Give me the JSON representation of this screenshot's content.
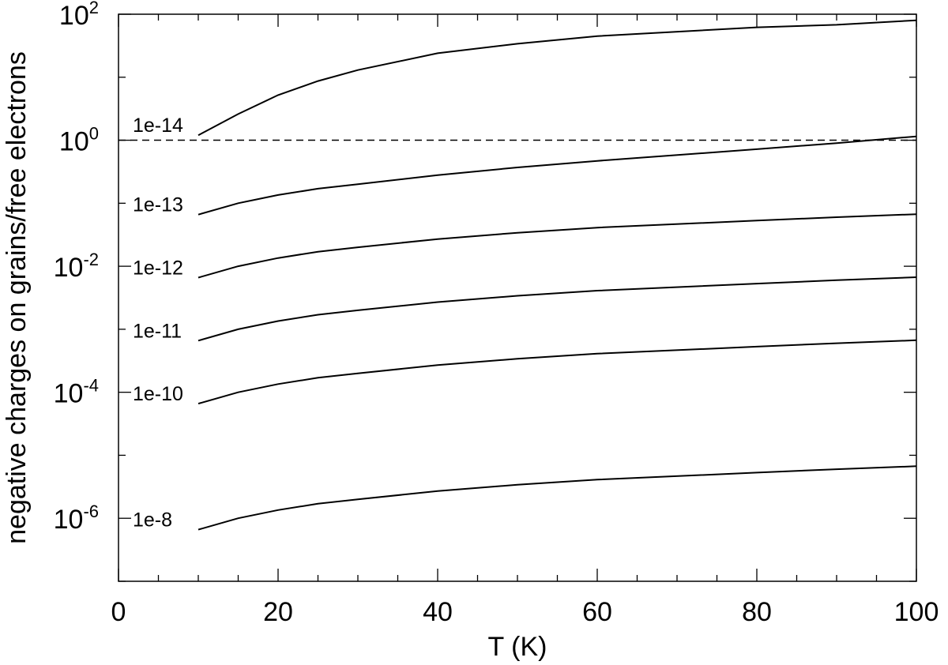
{
  "chart_data": {
    "type": "line",
    "xlabel": "T (K)",
    "ylabel": "negative charges on grains/free electrons",
    "xlim": [
      0,
      100
    ],
    "ylim": [
      1e-07,
      100
    ],
    "y_scale": "log",
    "x_ticks": [
      "0",
      "20",
      "40",
      "60",
      "80",
      "100"
    ],
    "y_ticks": [
      {
        "base": "10",
        "exp": "2",
        "value": 100
      },
      {
        "base": "10",
        "exp": "0",
        "value": 1
      },
      {
        "base": "10",
        "exp": "-2",
        "value": 0.01
      },
      {
        "base": "10",
        "exp": "-4",
        "value": 0.0001
      },
      {
        "base": "10",
        "exp": "-6",
        "value": 1e-06
      }
    ],
    "grid": false,
    "reference_line": {
      "y": 1,
      "style": "dashed"
    },
    "x": [
      10,
      15,
      20,
      25,
      30,
      40,
      50,
      60,
      80,
      90,
      100
    ],
    "series": [
      {
        "name": "1e-14",
        "values": [
          1.2,
          2.6,
          5.2,
          8.7,
          13,
          24,
          34,
          45,
          62,
          68,
          80
        ]
      },
      {
        "name": "1e-13",
        "values": [
          0.066,
          0.1,
          0.135,
          0.17,
          0.2,
          0.28,
          0.37,
          0.47,
          0.72,
          0.9,
          1.15
        ]
      },
      {
        "name": "1e-12",
        "values": [
          0.0066,
          0.01,
          0.0135,
          0.017,
          0.02,
          0.027,
          0.034,
          0.041,
          0.053,
          0.06,
          0.067
        ]
      },
      {
        "name": "1e-11",
        "values": [
          0.00066,
          0.001,
          0.00135,
          0.0017,
          0.002,
          0.0027,
          0.0034,
          0.0041,
          0.0053,
          0.006,
          0.0067
        ]
      },
      {
        "name": "1e-10",
        "values": [
          6.6e-05,
          0.0001,
          0.000135,
          0.00017,
          0.0002,
          0.00027,
          0.00034,
          0.00041,
          0.00053,
          0.0006,
          0.00067
        ]
      },
      {
        "name": "1e-8",
        "values": [
          6.6e-07,
          1e-06,
          1.35e-06,
          1.7e-06,
          2e-06,
          2.7e-06,
          3.4e-06,
          4.1e-06,
          5.3e-06,
          6e-06,
          6.7e-06
        ]
      }
    ]
  }
}
